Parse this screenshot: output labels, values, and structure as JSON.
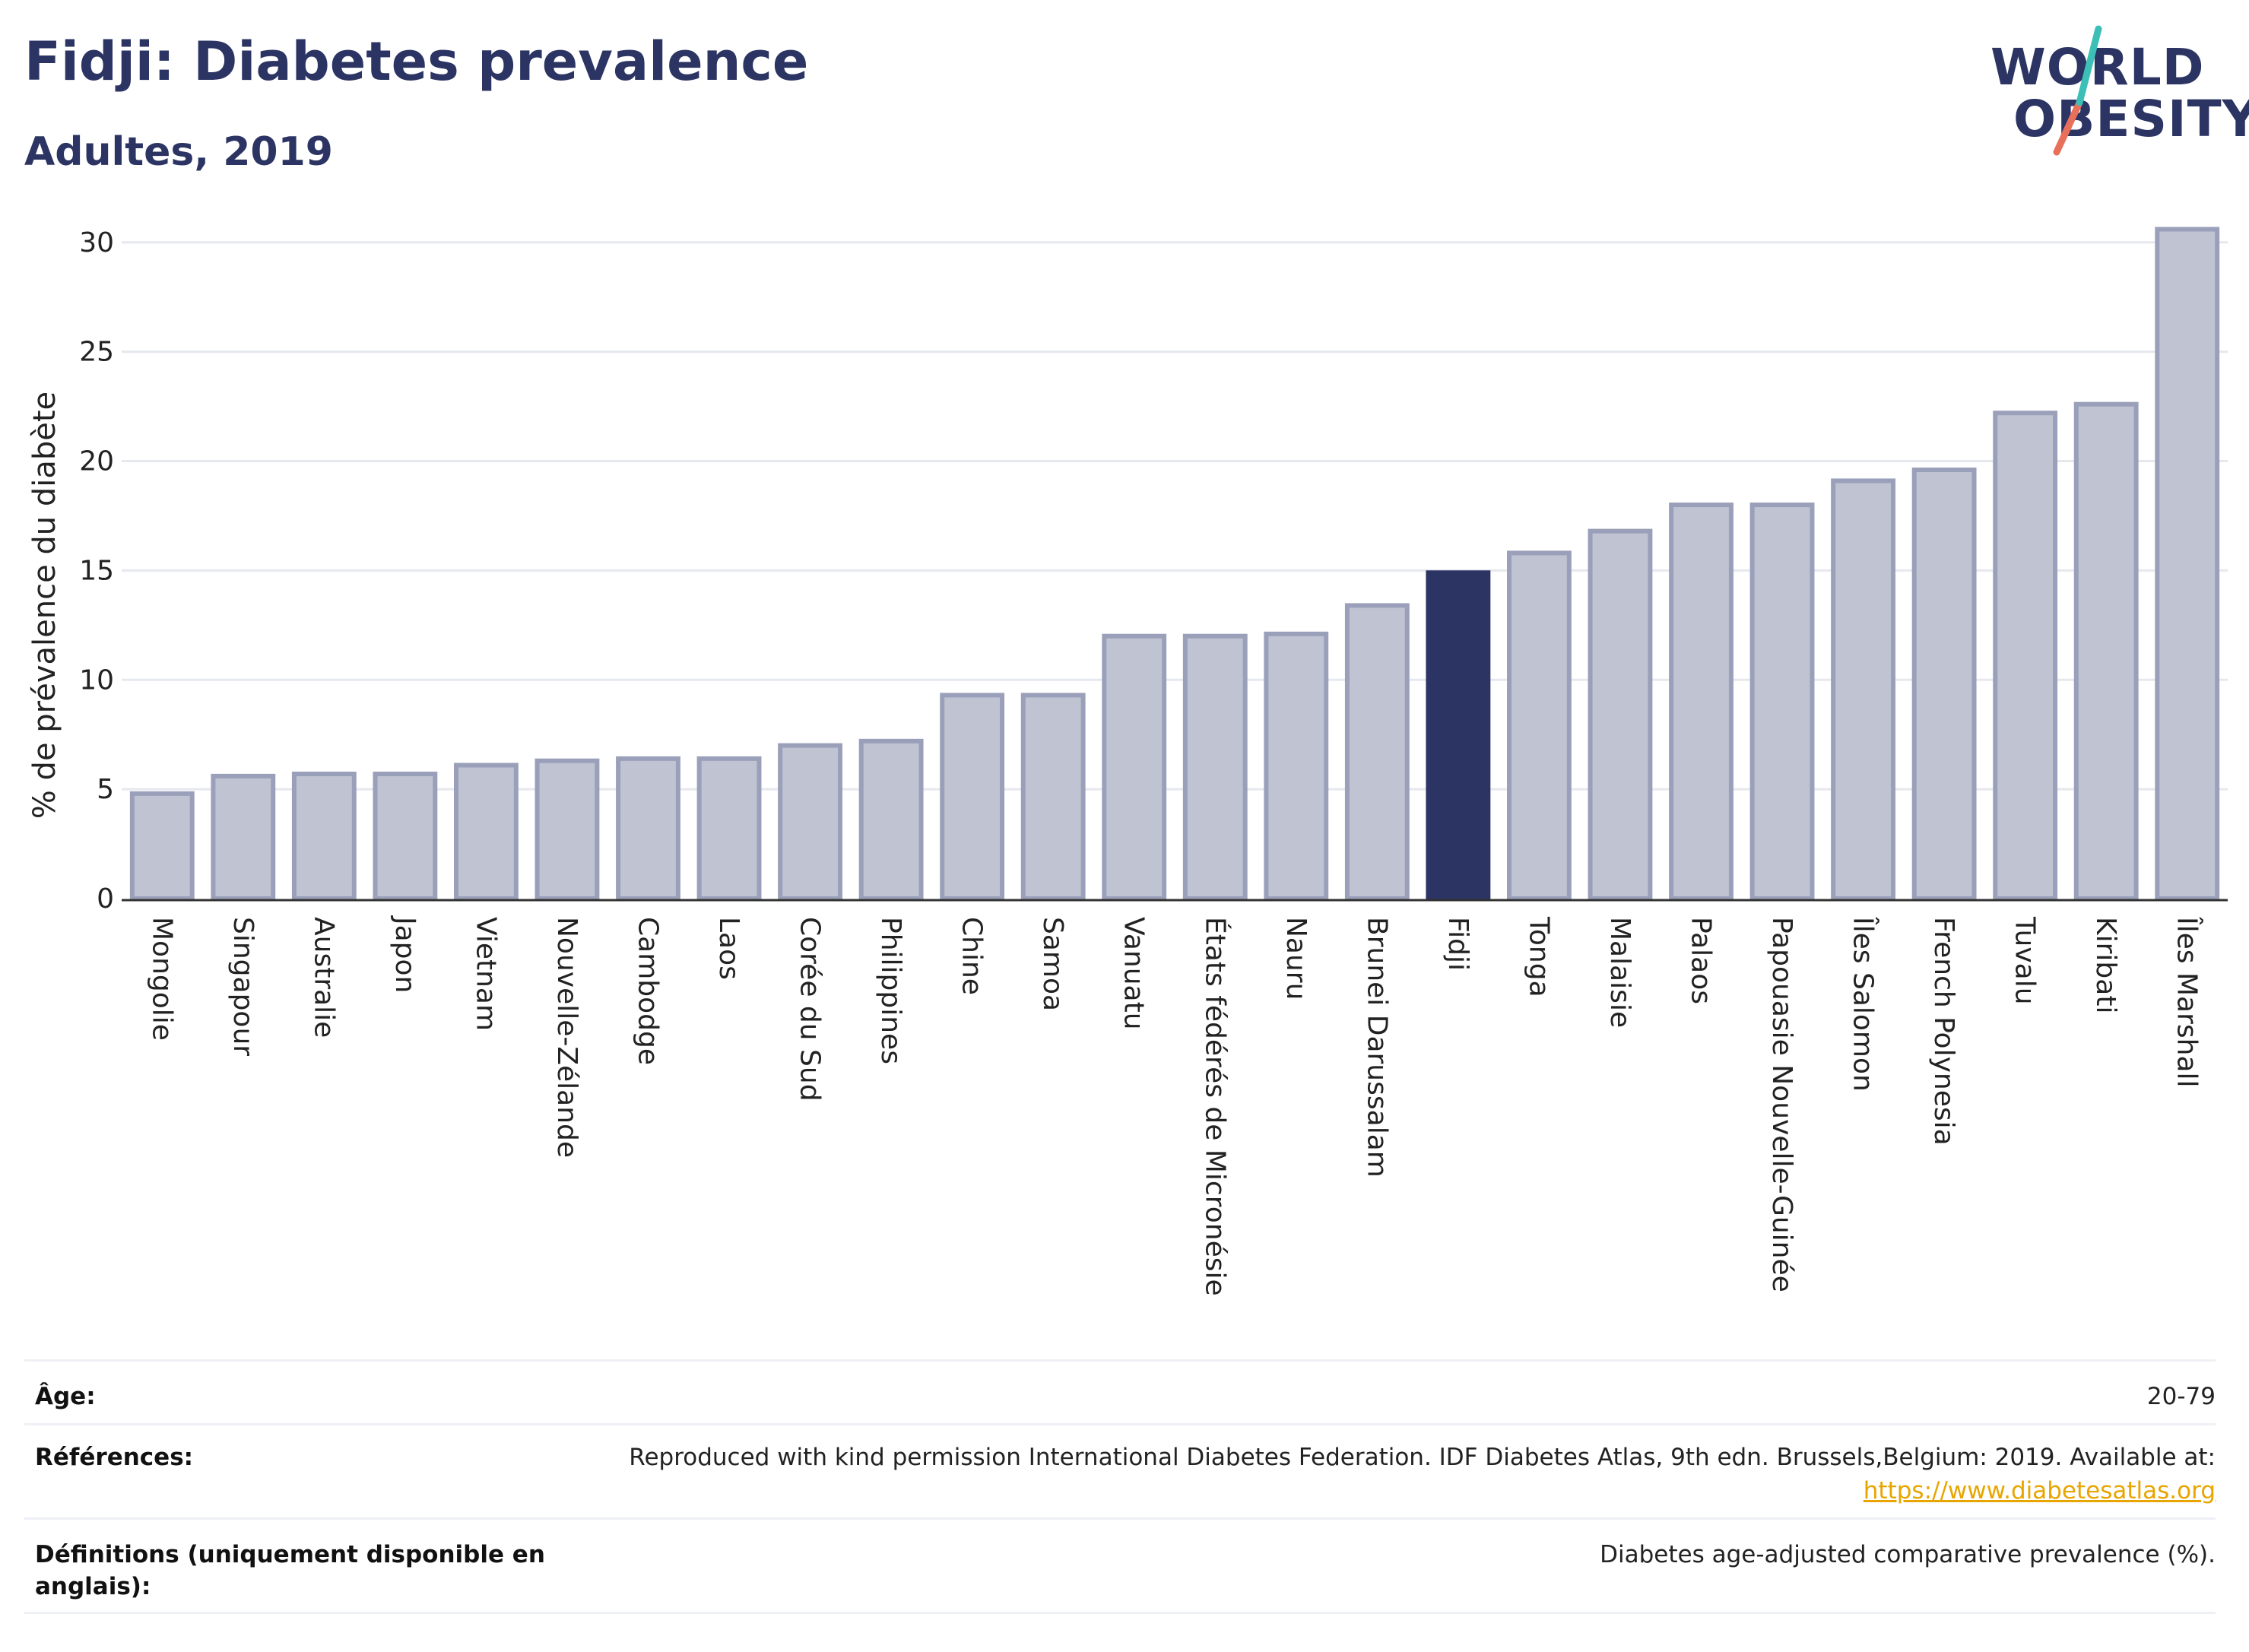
{
  "header": {
    "title": "Fidji: Diabetes prevalence",
    "subtitle": "Adultes, 2019"
  },
  "logo": {
    "line1": "WORLD",
    "line2": "OBESITY"
  },
  "chart_data": {
    "type": "bar",
    "ylabel": "% de prévalence du diabète",
    "ylim": [
      0,
      31
    ],
    "yticks": [
      0,
      5,
      10,
      15,
      20,
      25,
      30
    ],
    "grid": true,
    "highlight": "Fidji",
    "colors": {
      "bar": "#bfc3d2",
      "bar_edge": "#9aa0b9",
      "highlight": "#2b3462"
    },
    "categories": [
      "Mongolie",
      "Singapour",
      "Australie",
      "Japon",
      "Vietnam",
      "Nouvelle-Zélande",
      "Cambodge",
      "Laos",
      "Corée du Sud",
      "Philippines",
      "Chine",
      "Samoa",
      "Vanuatu",
      "États fédérés de Micronésie",
      "Nauru",
      "Brunei Darussalam",
      "Fidji",
      "Tonga",
      "Malaisie",
      "Palaos",
      "Papouasie Nouvelle-Guinée",
      "Îles Salomon",
      "French Polynesia",
      "Tuvalu",
      "Kiribati",
      "Îles Marshall"
    ],
    "values": [
      4.8,
      5.6,
      5.7,
      5.7,
      6.1,
      6.3,
      6.4,
      6.4,
      7.0,
      7.2,
      9.3,
      9.3,
      12.0,
      12.0,
      12.1,
      13.4,
      14.9,
      15.8,
      16.8,
      18.0,
      18.0,
      19.1,
      19.6,
      22.2,
      22.6,
      30.6
    ]
  },
  "info": {
    "age_label": "Âge:",
    "age_value": "20-79",
    "ref_label": "Références:",
    "ref_value": "Reproduced with kind permission International Diabetes Federation. IDF Diabetes Atlas, 9th edn. Brussels,Belgium: 2019. Available at:",
    "ref_link": "https://www.diabetesatlas.org",
    "def_label_1": "Définitions (uniquement disponible en",
    "def_label_2": "anglais):",
    "def_value": "Diabetes age-adjusted comparative prevalence (%)."
  }
}
